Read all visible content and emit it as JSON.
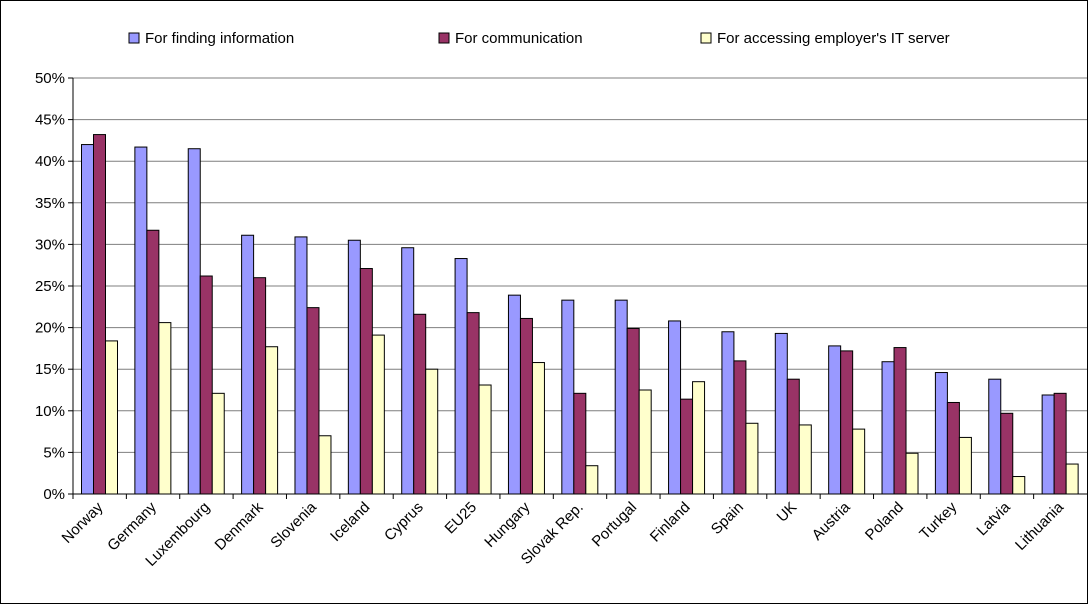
{
  "chart_data": {
    "type": "bar",
    "title": "",
    "xlabel": "",
    "ylabel": "",
    "ylim": [
      0,
      50
    ],
    "y_ticks": [
      "0%",
      "5%",
      "10%",
      "15%",
      "20%",
      "25%",
      "30%",
      "35%",
      "40%",
      "45%",
      "50%"
    ],
    "y_tick_values": [
      0,
      5,
      10,
      15,
      20,
      25,
      30,
      35,
      40,
      45,
      50
    ],
    "grid": true,
    "legend_position": "top",
    "categories": [
      "Norway",
      "Germany",
      "Luxembourg",
      "Denmark",
      "Slovenia",
      "Iceland",
      "Cyprus",
      "EU25",
      "Hungary",
      "Slovak Rep.",
      "Portugal",
      "Finland",
      "Spain",
      "UK",
      "Austria",
      "Poland",
      "Turkey",
      "Latvia",
      "Lithuania"
    ],
    "series": [
      {
        "name": "For finding information",
        "color": "#9999ff",
        "values": [
          42.0,
          41.7,
          41.5,
          31.1,
          30.9,
          30.5,
          29.6,
          28.3,
          23.9,
          23.3,
          23.3,
          20.8,
          19.5,
          19.3,
          17.8,
          15.9,
          14.6,
          13.8,
          11.9
        ]
      },
      {
        "name": "For communication",
        "color": "#993366",
        "values": [
          43.2,
          31.7,
          26.2,
          26.0,
          22.4,
          27.1,
          21.6,
          21.8,
          21.1,
          12.1,
          19.9,
          11.4,
          16.0,
          13.8,
          17.2,
          17.6,
          11.0,
          9.7,
          12.1
        ]
      },
      {
        "name": "For accessing employer's IT server",
        "color": "#ffffcc",
        "values": [
          18.4,
          20.6,
          12.1,
          17.7,
          7.0,
          19.1,
          15.0,
          13.1,
          15.8,
          3.4,
          12.5,
          13.5,
          8.5,
          8.3,
          7.8,
          4.9,
          6.8,
          2.1,
          3.6
        ]
      }
    ]
  }
}
